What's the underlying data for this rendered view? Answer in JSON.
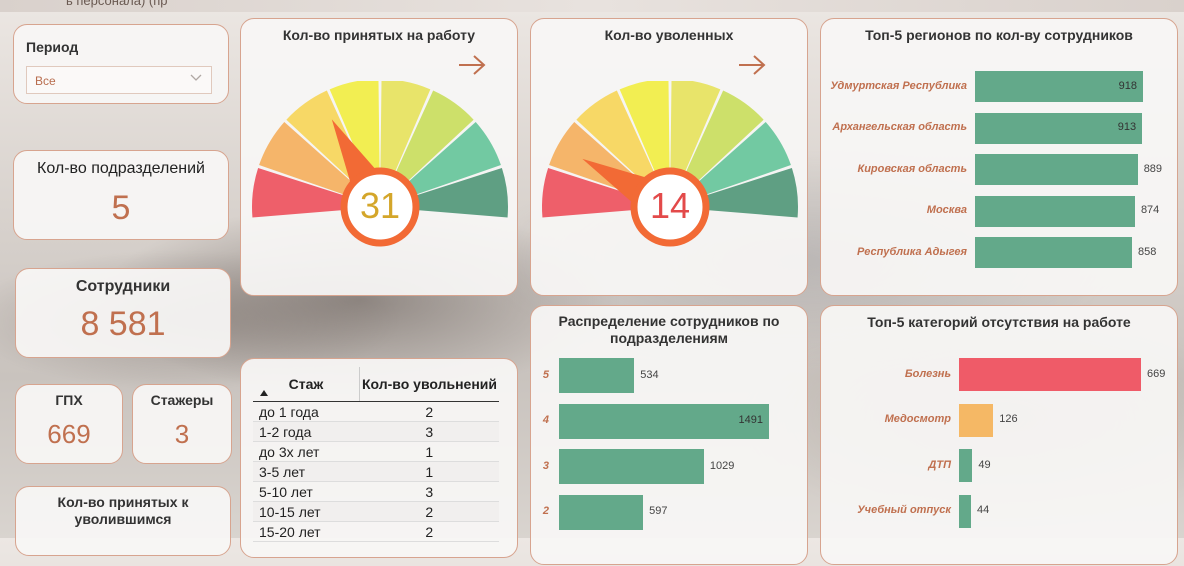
{
  "header": {
    "title": "ь персонала) (пр"
  },
  "period": {
    "label": "Период",
    "value": "Все"
  },
  "kpis": {
    "divisions": {
      "label": "Кол-во подразделений",
      "value": "5"
    },
    "employees": {
      "label": "Сотрудники",
      "value": "8 581"
    },
    "gph": {
      "label": "ГПХ",
      "value": "669"
    },
    "interns": {
      "label": "Стажеры",
      "value": "3"
    },
    "hired_to_fired": {
      "label": "Кол-во принятых к уволившимся"
    }
  },
  "gauges": [
    {
      "title": "Кол-во принятых на работу",
      "value": "31",
      "value_color": "#d4a62a",
      "needle_fraction": 0.34
    },
    {
      "title": "Кол-во уволенных",
      "value": "14",
      "value_color": "#e34a4a",
      "needle_fraction": 0.16
    }
  ],
  "gauge_segment_colors": [
    "#ee5f6a",
    "#f5b56a",
    "#f7d866",
    "#f2ee52",
    "#e8e46a",
    "#cde06a",
    "#72c9a2",
    "#5f9f83"
  ],
  "table": {
    "columns": [
      "Стаж",
      "Кол-во увольнений"
    ],
    "rows": [
      [
        "до 1 года",
        "2"
      ],
      [
        "1-2 года",
        "3"
      ],
      [
        "до 3х лет",
        "1"
      ],
      [
        "3-5 лет",
        "1"
      ],
      [
        "5-10 лет",
        "3"
      ],
      [
        "10-15 лет",
        "2"
      ],
      [
        "15-20 лет",
        "2"
      ]
    ]
  },
  "chart_data": [
    {
      "type": "bar",
      "orientation": "horizontal",
      "title": "Топ-5 регионов по кол-ву сотрудников",
      "categories": [
        "Удмуртская Республика",
        "Архангельская область",
        "Кировская область",
        "Москва",
        "Республика Адыгея"
      ],
      "values": [
        918,
        913,
        889,
        874,
        858
      ],
      "color": "#63a98a"
    },
    {
      "type": "bar",
      "orientation": "horizontal",
      "title": "Распределение сотрудников по подразделениям",
      "categories": [
        "5",
        "4",
        "3",
        "2"
      ],
      "values": [
        534,
        1491,
        1029,
        597
      ],
      "color": "#63a98a"
    },
    {
      "type": "bar",
      "orientation": "horizontal",
      "title": "Топ-5 категорий отсутствия на работе",
      "categories": [
        "Болезнь",
        "Медосмотр",
        "ДТП",
        "Учебный отпуск"
      ],
      "values": [
        669,
        126,
        49,
        44
      ],
      "colors": [
        "#ef5b68",
        "#f5b865",
        "#63a98a",
        "#63a98a"
      ]
    }
  ]
}
